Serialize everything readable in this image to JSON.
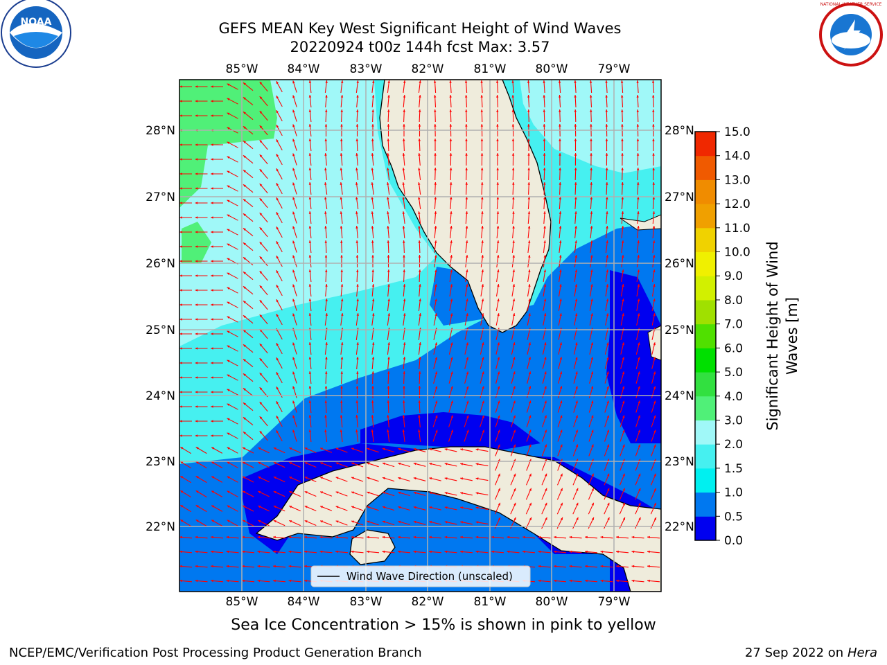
{
  "title_line1": "GEFS MEAN Key West Significant Height of Wind Waves",
  "title_line2": "20220924 t00z 144h fcst   Max: 3.57",
  "lon_labels": [
    "85°W",
    "84°W",
    "83°W",
    "82°W",
    "81°W",
    "80°W",
    "79°W"
  ],
  "lat_labels": [
    "28°N",
    "27°N",
    "26°N",
    "25°N",
    "24°N",
    "23°N",
    "22°N"
  ],
  "colorbar": {
    "title_line1": "Significant Height of Wind",
    "title_line2": "Waves [m]",
    "ticks": [
      "15.0",
      "14.0",
      "13.0",
      "12.0",
      "11.0",
      "10.0",
      "9.0",
      "8.0",
      "7.0",
      "6.0",
      "5.0",
      "4.0",
      "3.0",
      "2.0",
      "1.5",
      "1.0",
      "0.5",
      "0.0"
    ],
    "colors": [
      "#0000f0",
      "#0078f0",
      "#00f0f0",
      "#46f0f0",
      "#a0f8f8",
      "#50f078",
      "#32e040",
      "#00e000",
      "#50e000",
      "#a0e000",
      "#d2f000",
      "#f0f000",
      "#f0d200",
      "#f0a000",
      "#f08c00",
      "#f05a00",
      "#f02800",
      "#f00000"
    ]
  },
  "legend_label": "Wind Wave Direction (unscaled)",
  "sea_ice_note": "Sea Ice Concentration > 15% is shown in pink to yellow",
  "footer_left": "NCEP/EMC/Verification Post Processing Product Generation Branch",
  "footer_date": "27 Sep 2022 on",
  "footer_machine": "Hera",
  "logo_left_text": "NOAA",
  "logo_right_text": "NATIONAL WEATHER SERVICE",
  "colors": {
    "land": "#efecdc",
    "arrow": "#ff0000",
    "grid": "#b0b0b0"
  }
}
